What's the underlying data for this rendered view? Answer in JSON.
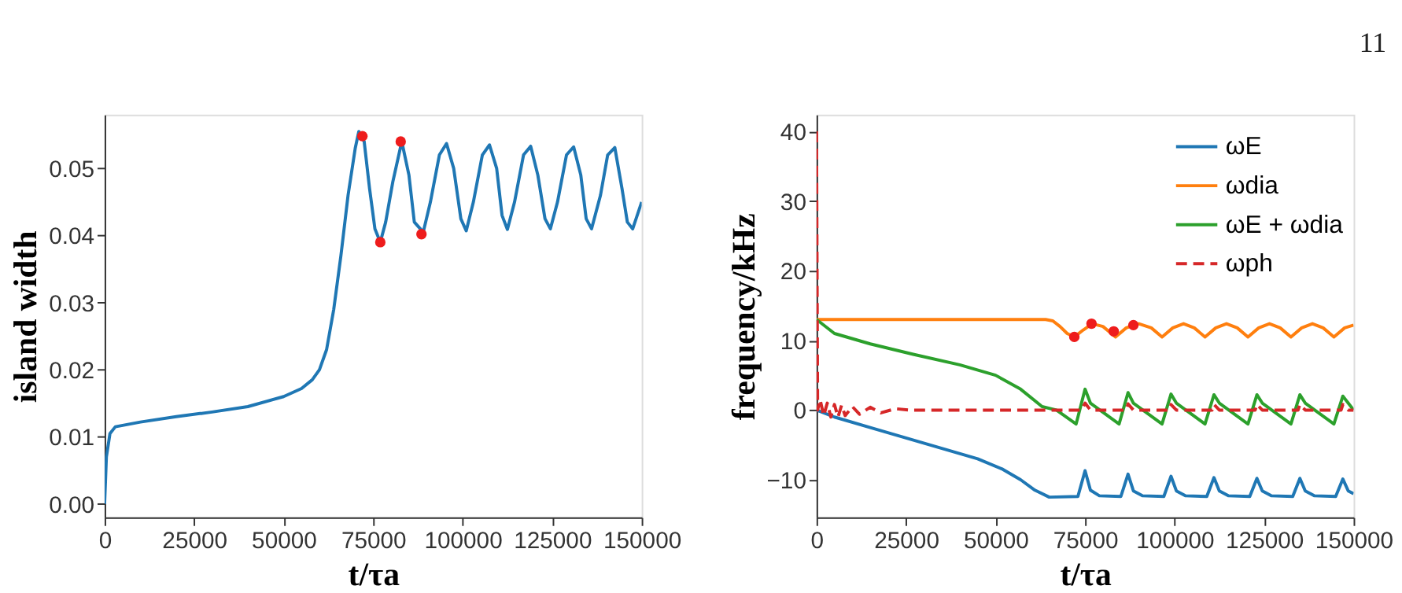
{
  "chart_data": [
    {
      "type": "line",
      "xlabel": "t/τa",
      "ylabel": "island width",
      "xlim": [
        0,
        150000
      ],
      "ylim": [
        -0.002,
        0.058
      ],
      "xticks": [
        0,
        25000,
        50000,
        75000,
        100000,
        125000,
        150000
      ],
      "yticks": [
        {
          "value": 0,
          "label": "0.00"
        },
        {
          "value": 0.01,
          "label": "0.01"
        },
        {
          "value": 0.02,
          "label": "0.02"
        },
        {
          "value": 0.03,
          "label": "0.03"
        },
        {
          "value": 0.04,
          "label": "0.04"
        },
        {
          "value": 0.05,
          "label": "0.05"
        }
      ],
      "grid": false,
      "legend": false,
      "series": [
        {
          "color": "#1f77b4",
          "line_style": "solid",
          "x": [
            0,
            500,
            1500,
            3000,
            10000,
            20000,
            30000,
            40000,
            50000,
            55000,
            58000,
            60000,
            62000,
            64000,
            66000,
            68000,
            70000,
            71000,
            72500,
            74000,
            75500,
            77000,
            78500,
            80500,
            83000,
            85000,
            86500,
            89000,
            91000,
            93500,
            95500,
            97500,
            99500,
            101000,
            103000,
            105500,
            107500,
            109500,
            111000,
            112500,
            114500,
            117000,
            119000,
            121000,
            123000,
            124500,
            126500,
            129000,
            131000,
            133000,
            134500,
            136000,
            138500,
            140500,
            142500,
            144500,
            146000,
            147500,
            150000
          ],
          "values": [
            0,
            0.007,
            0.0105,
            0.0115,
            0.0122,
            0.013,
            0.0137,
            0.0145,
            0.016,
            0.0172,
            0.0185,
            0.02,
            0.023,
            0.029,
            0.037,
            0.046,
            0.053,
            0.0555,
            0.054,
            0.047,
            0.041,
            0.039,
            0.042,
            0.048,
            0.054,
            0.049,
            0.042,
            0.0405,
            0.045,
            0.052,
            0.0537,
            0.05,
            0.0425,
            0.0407,
            0.045,
            0.052,
            0.0535,
            0.05,
            0.043,
            0.0409,
            0.045,
            0.052,
            0.0533,
            0.049,
            0.0425,
            0.041,
            0.045,
            0.052,
            0.0532,
            0.049,
            0.0425,
            0.041,
            0.046,
            0.052,
            0.0531,
            0.047,
            0.042,
            0.041,
            0.045
          ]
        },
        {
          "type": "scatter",
          "color": "#ee1c1c",
          "marker": "circle",
          "x": [
            72000,
            77000,
            82700,
            88500
          ],
          "values": [
            0.0548,
            0.039,
            0.054,
            0.0402
          ]
        }
      ]
    },
    {
      "type": "line",
      "xlabel": "t/τa",
      "ylabel": "frequency/kHz",
      "xlim": [
        0,
        150000
      ],
      "ylim": [
        -15.4,
        42.4
      ],
      "xticks": [
        0,
        25000,
        50000,
        75000,
        100000,
        125000,
        150000
      ],
      "yticks": [
        {
          "value": -10,
          "label": "−10"
        },
        0,
        10,
        20,
        30,
        40
      ],
      "grid": false,
      "legend": "top right",
      "annotations": [
        "11"
      ],
      "series": [
        {
          "name": "ωE",
          "color": "#1f77b4",
          "line_style": "solid",
          "x": [
            0,
            5000,
            15000,
            25000,
            35000,
            45000,
            52000,
            57000,
            61000,
            65000,
            73000,
            75000,
            76500,
            79000,
            85000,
            87000,
            88500,
            91000,
            97000,
            99000,
            100500,
            103000,
            109000,
            111000,
            112500,
            115000,
            121000,
            123000,
            124500,
            127000,
            133000,
            135000,
            136500,
            139000,
            145000,
            147000,
            148500,
            150000
          ],
          "values": [
            0,
            -1,
            -2.5,
            -4,
            -5.5,
            -7,
            -8.5,
            -10,
            -11.5,
            -12.5,
            -12.4,
            -8.7,
            -11.5,
            -12.3,
            -12.4,
            -9.2,
            -11.6,
            -12.3,
            -12.4,
            -9.5,
            -11.6,
            -12.3,
            -12.4,
            -9.7,
            -11.6,
            -12.3,
            -12.4,
            -9.8,
            -11.6,
            -12.3,
            -12.4,
            -9.8,
            -11.6,
            -12.3,
            -12.4,
            -9.9,
            -11.6,
            -12
          ]
        },
        {
          "name": "ωdia",
          "color": "#ff7f0e",
          "line_style": "solid",
          "x": [
            0,
            64000,
            66000,
            68000,
            70000,
            72000,
            74500,
            77000,
            80000,
            83500,
            86500,
            90000,
            93500,
            96500,
            99500,
            102500,
            105500,
            108500,
            111500,
            114500,
            117500,
            120500,
            123500,
            126500,
            129500,
            132500,
            135500,
            138500,
            141500,
            144500,
            147500,
            150000
          ],
          "values": [
            13,
            13,
            12.8,
            12,
            11,
            10.5,
            11.5,
            12.4,
            12,
            10.5,
            11.8,
            12.4,
            11.8,
            10.5,
            11.8,
            12.4,
            11.8,
            10.5,
            11.8,
            12.4,
            11.8,
            10.5,
            11.8,
            12.4,
            11.8,
            10.5,
            11.8,
            12.4,
            11.8,
            10.5,
            11.8,
            12.2
          ]
        },
        {
          "name": "ωE + ωdia",
          "color": "#2ca02c",
          "line_style": "solid",
          "x": [
            0,
            5000,
            15000,
            27000,
            40000,
            50000,
            57000,
            63000,
            67000,
            72500,
            75000,
            76500,
            84500,
            87000,
            88500,
            96500,
            99000,
            100500,
            108500,
            111000,
            112500,
            120500,
            123000,
            124500,
            132500,
            135000,
            136500,
            144500,
            147000,
            148500,
            150000
          ],
          "values": [
            13,
            11,
            9.5,
            8,
            6.5,
            5,
            3,
            0.5,
            0,
            -2,
            3,
            1,
            -2,
            2.5,
            1,
            -2,
            2.3,
            1,
            -2,
            2.2,
            1,
            -2,
            2.2,
            1,
            -2,
            2.2,
            1,
            -2,
            2,
            1,
            0
          ]
        },
        {
          "name": "ωph",
          "color": "#d62728",
          "line_style": "dashed",
          "x": [
            0,
            300,
            1000,
            2000,
            3000,
            4000,
            5000,
            6000,
            7000,
            8000,
            10000,
            12000,
            15000,
            18000,
            22000,
            26000,
            74000,
            75000,
            76500,
            86500,
            87000,
            88500,
            98500,
            99000,
            100500,
            110500,
            111000,
            112500,
            122500,
            123000,
            124500,
            134500,
            135000,
            136500,
            146500,
            147000,
            148500,
            150000
          ],
          "values": [
            40,
            0,
            1.5,
            -0.8,
            1,
            -1,
            0.8,
            -1,
            0.7,
            -0.8,
            0.5,
            -0.6,
            0.4,
            -0.4,
            0.2,
            0,
            0,
            1,
            0,
            0,
            0.9,
            0,
            0,
            0.8,
            0,
            0,
            0.8,
            0,
            0,
            0.8,
            0,
            0,
            0.8,
            0,
            0,
            0.8,
            0,
            0
          ]
        },
        {
          "type": "scatter",
          "color": "#ee1c1c",
          "marker": "circle",
          "x": [
            72000,
            76800,
            83000,
            88500
          ],
          "values": [
            10.5,
            12.4,
            11.3,
            12.2
          ]
        }
      ]
    }
  ]
}
